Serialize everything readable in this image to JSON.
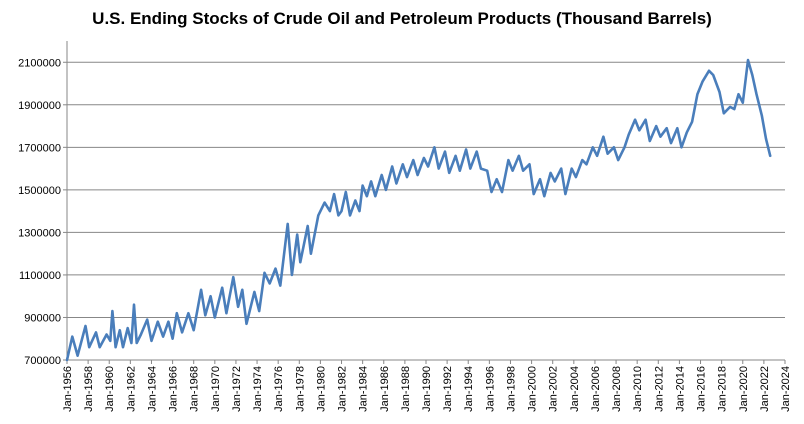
{
  "chart_data": {
    "type": "line",
    "title": "U.S. Ending Stocks of Crude Oil and Petroleum Products (Thousand Barrels)",
    "xlabel": "",
    "ylabel": "",
    "xlim": [
      1956,
      2024
    ],
    "ylim": [
      700000,
      2200000
    ],
    "x_ticks": [
      "Jan-1956",
      "Jan-1958",
      "Jan-1960",
      "Jan-1962",
      "Jan-1964",
      "Jan-1966",
      "Jan-1968",
      "Jan-1970",
      "Jan-1972",
      "Jan-1974",
      "Jan-1976",
      "Jan-1978",
      "Jan-1980",
      "Jan-1982",
      "Jan-1984",
      "Jan-1986",
      "Jan-1988",
      "Jan-1990",
      "Jan-1992",
      "Jan-1994",
      "Jan-1996",
      "Jan-1998",
      "Jan-2000",
      "Jan-2002",
      "Jan-2004",
      "Jan-2006",
      "Jan-2008",
      "Jan-2010",
      "Jan-2012",
      "Jan-2014",
      "Jan-2016",
      "Jan-2018",
      "Jan-2020",
      "Jan-2022",
      "Jan-2024"
    ],
    "y_ticks": [
      700000,
      900000,
      1100000,
      1300000,
      1500000,
      1700000,
      1900000,
      2100000
    ],
    "y_tick_labels": [
      "700000",
      "900000",
      "1100000",
      "1300000",
      "1500000",
      "1700000",
      "1900000",
      "2100000"
    ],
    "grid": true,
    "series": [
      {
        "name": "U.S. Ending Stocks of Crude Oil and Petroleum Products",
        "color": "#4a7ebb",
        "points": [
          [
            1956.0,
            700000
          ],
          [
            1956.5,
            810000
          ],
          [
            1957.0,
            720000
          ],
          [
            1957.75,
            860000
          ],
          [
            1958.1,
            760000
          ],
          [
            1958.75,
            830000
          ],
          [
            1959.1,
            760000
          ],
          [
            1959.75,
            820000
          ],
          [
            1960.1,
            790000
          ],
          [
            1960.3,
            930000
          ],
          [
            1960.6,
            760000
          ],
          [
            1961.0,
            840000
          ],
          [
            1961.3,
            760000
          ],
          [
            1961.75,
            850000
          ],
          [
            1962.1,
            780000
          ],
          [
            1962.35,
            960000
          ],
          [
            1962.6,
            780000
          ],
          [
            1963.0,
            820000
          ],
          [
            1963.6,
            890000
          ],
          [
            1964.0,
            790000
          ],
          [
            1964.6,
            880000
          ],
          [
            1965.1,
            810000
          ],
          [
            1965.6,
            880000
          ],
          [
            1966.0,
            800000
          ],
          [
            1966.4,
            920000
          ],
          [
            1966.9,
            830000
          ],
          [
            1967.5,
            920000
          ],
          [
            1968.0,
            840000
          ],
          [
            1968.7,
            1030000
          ],
          [
            1969.1,
            910000
          ],
          [
            1969.6,
            1000000
          ],
          [
            1970.0,
            900000
          ],
          [
            1970.7,
            1040000
          ],
          [
            1971.1,
            920000
          ],
          [
            1971.75,
            1090000
          ],
          [
            1972.2,
            950000
          ],
          [
            1972.6,
            1030000
          ],
          [
            1973.0,
            870000
          ],
          [
            1973.75,
            1020000
          ],
          [
            1974.2,
            930000
          ],
          [
            1974.7,
            1110000
          ],
          [
            1975.2,
            1060000
          ],
          [
            1975.75,
            1130000
          ],
          [
            1976.2,
            1050000
          ],
          [
            1976.9,
            1340000
          ],
          [
            1977.3,
            1100000
          ],
          [
            1977.8,
            1290000
          ],
          [
            1978.1,
            1160000
          ],
          [
            1978.8,
            1330000
          ],
          [
            1979.1,
            1200000
          ],
          [
            1979.8,
            1380000
          ],
          [
            1980.4,
            1440000
          ],
          [
            1980.9,
            1400000
          ],
          [
            1981.3,
            1480000
          ],
          [
            1981.7,
            1380000
          ],
          [
            1982.0,
            1400000
          ],
          [
            1982.4,
            1490000
          ],
          [
            1982.8,
            1380000
          ],
          [
            1983.3,
            1450000
          ],
          [
            1983.7,
            1400000
          ],
          [
            1984.0,
            1520000
          ],
          [
            1984.4,
            1470000
          ],
          [
            1984.8,
            1540000
          ],
          [
            1985.2,
            1470000
          ],
          [
            1985.8,
            1570000
          ],
          [
            1986.2,
            1500000
          ],
          [
            1986.8,
            1610000
          ],
          [
            1987.2,
            1530000
          ],
          [
            1987.8,
            1620000
          ],
          [
            1988.2,
            1560000
          ],
          [
            1988.8,
            1640000
          ],
          [
            1989.2,
            1570000
          ],
          [
            1989.8,
            1650000
          ],
          [
            1990.2,
            1610000
          ],
          [
            1990.8,
            1700000
          ],
          [
            1991.2,
            1600000
          ],
          [
            1991.8,
            1680000
          ],
          [
            1992.2,
            1580000
          ],
          [
            1992.8,
            1660000
          ],
          [
            1993.2,
            1590000
          ],
          [
            1993.8,
            1690000
          ],
          [
            1994.2,
            1600000
          ],
          [
            1994.8,
            1680000
          ],
          [
            1995.2,
            1600000
          ],
          [
            1995.8,
            1590000
          ],
          [
            1996.2,
            1490000
          ],
          [
            1996.7,
            1550000
          ],
          [
            1997.2,
            1490000
          ],
          [
            1997.8,
            1640000
          ],
          [
            1998.2,
            1590000
          ],
          [
            1998.8,
            1660000
          ],
          [
            1999.2,
            1590000
          ],
          [
            1999.8,
            1620000
          ],
          [
            2000.2,
            1480000
          ],
          [
            2000.8,
            1550000
          ],
          [
            2001.2,
            1470000
          ],
          [
            2001.8,
            1580000
          ],
          [
            2002.2,
            1540000
          ],
          [
            2002.8,
            1600000
          ],
          [
            2003.2,
            1480000
          ],
          [
            2003.8,
            1600000
          ],
          [
            2004.2,
            1560000
          ],
          [
            2004.8,
            1640000
          ],
          [
            2005.2,
            1620000
          ],
          [
            2005.8,
            1700000
          ],
          [
            2006.2,
            1660000
          ],
          [
            2006.8,
            1750000
          ],
          [
            2007.2,
            1670000
          ],
          [
            2007.8,
            1700000
          ],
          [
            2008.2,
            1640000
          ],
          [
            2008.8,
            1700000
          ],
          [
            2009.2,
            1760000
          ],
          [
            2009.8,
            1830000
          ],
          [
            2010.2,
            1780000
          ],
          [
            2010.8,
            1830000
          ],
          [
            2011.2,
            1730000
          ],
          [
            2011.8,
            1800000
          ],
          [
            2012.2,
            1750000
          ],
          [
            2012.8,
            1790000
          ],
          [
            2013.2,
            1720000
          ],
          [
            2013.8,
            1790000
          ],
          [
            2014.2,
            1700000
          ],
          [
            2014.7,
            1770000
          ],
          [
            2015.2,
            1820000
          ],
          [
            2015.7,
            1950000
          ],
          [
            2016.2,
            2010000
          ],
          [
            2016.8,
            2060000
          ],
          [
            2017.2,
            2040000
          ],
          [
            2017.8,
            1960000
          ],
          [
            2018.2,
            1860000
          ],
          [
            2018.8,
            1890000
          ],
          [
            2019.2,
            1880000
          ],
          [
            2019.6,
            1950000
          ],
          [
            2020.0,
            1910000
          ],
          [
            2020.5,
            2110000
          ],
          [
            2020.9,
            2040000
          ],
          [
            2021.3,
            1950000
          ],
          [
            2021.8,
            1850000
          ],
          [
            2022.2,
            1740000
          ],
          [
            2022.6,
            1660000
          ]
        ]
      }
    ]
  }
}
